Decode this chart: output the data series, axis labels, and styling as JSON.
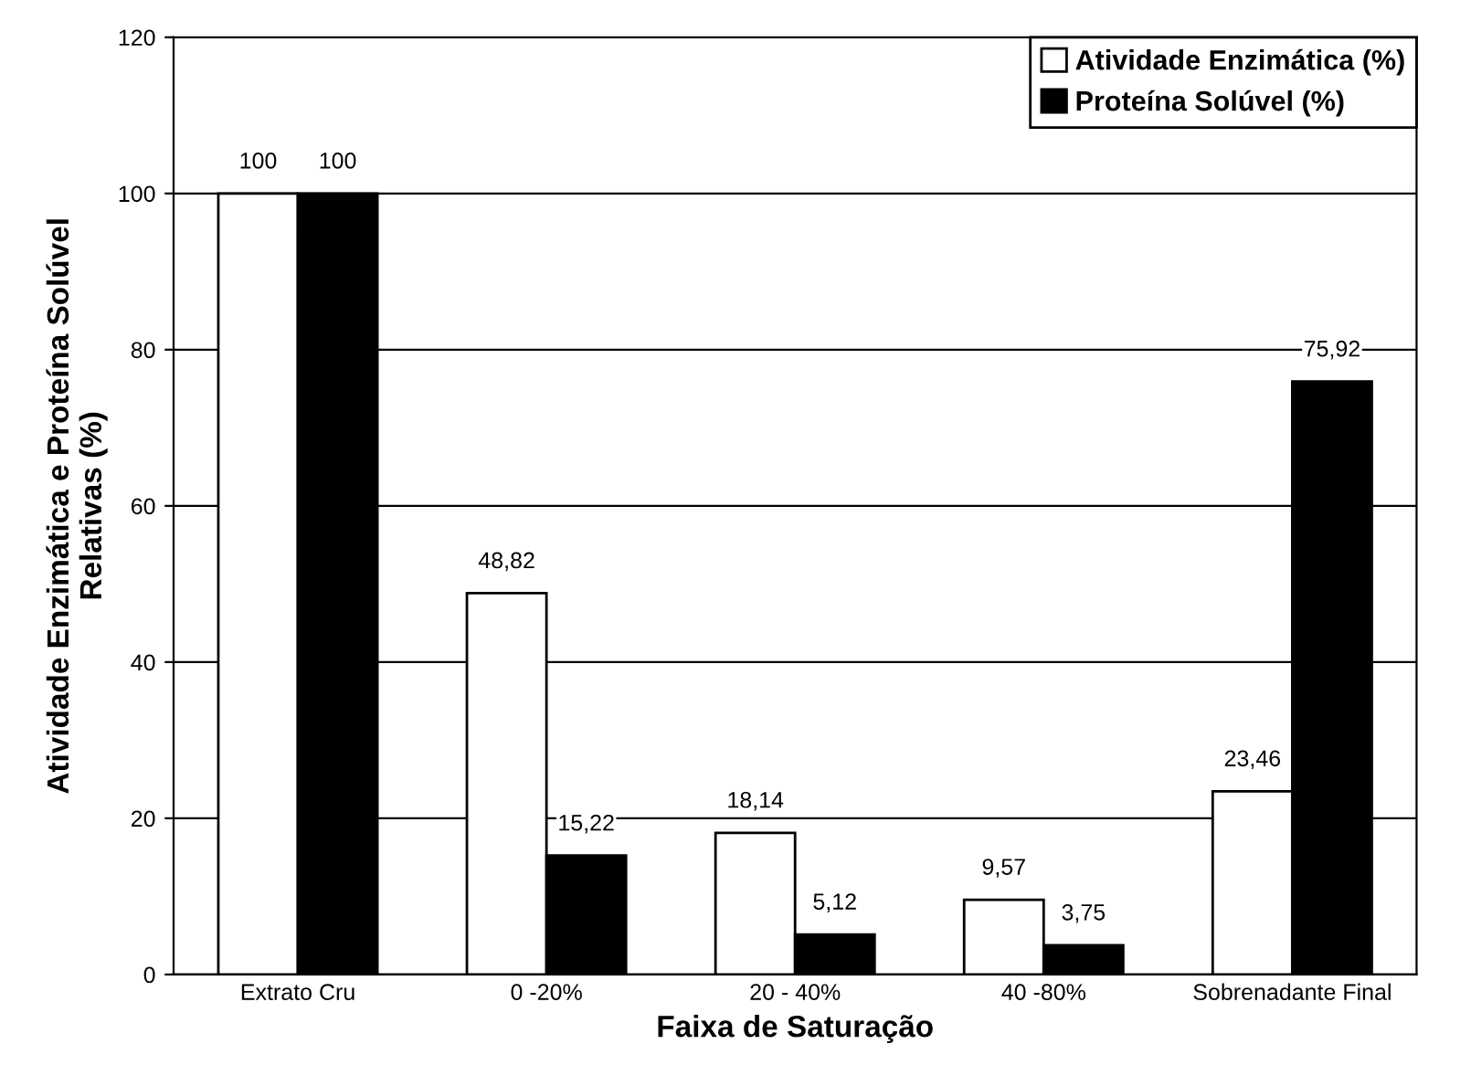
{
  "chart_data": {
    "type": "bar",
    "xlabel": "Faixa de Saturação",
    "ylabel": "Atividade Enzimática e Proteína Solúvel\nRelativas (%)",
    "categories": [
      "Extrato Cru",
      "0 -20%",
      "20 - 40%",
      "40 -80%",
      "Sobrenadante Final"
    ],
    "series": [
      {
        "name": "Atividade Enzimática (%)",
        "color": "#ffffff",
        "values": [
          100,
          48.82,
          18.14,
          9.57,
          23.46
        ],
        "value_labels": [
          "100",
          "48,82",
          "18,14",
          "9,57",
          "23,46"
        ]
      },
      {
        "name": "Proteína Solúvel (%)",
        "color": "#000000",
        "values": [
          100,
          15.22,
          5.12,
          3.75,
          75.92
        ],
        "value_labels": [
          "100",
          "15,22",
          "5,12",
          "3,75",
          "75,92"
        ]
      }
    ],
    "ylim": [
      0,
      120
    ],
    "yticks": [
      0,
      20,
      40,
      60,
      80,
      100,
      120
    ],
    "grid": "y",
    "legend": "top right"
  }
}
